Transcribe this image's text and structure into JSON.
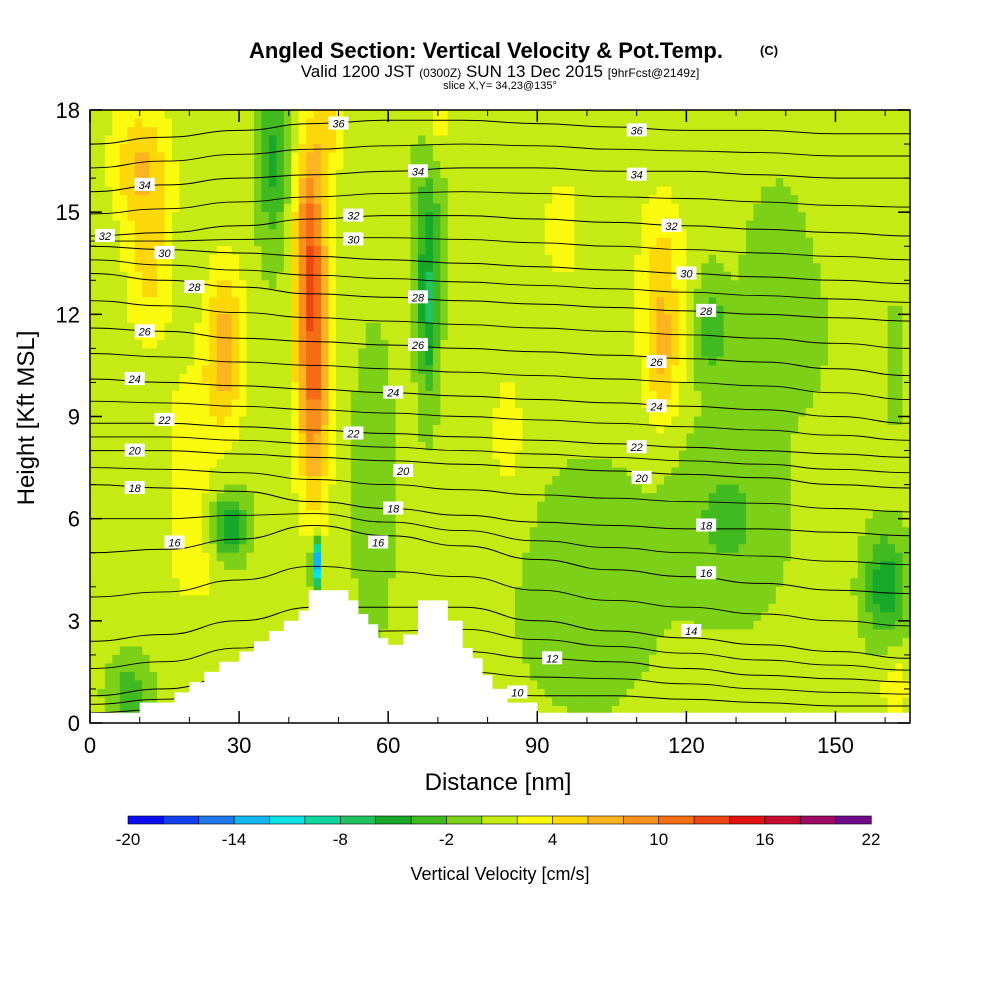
{
  "chart_data": {
    "type": "heatmap",
    "title": "Angled Section: Vertical Velocity & Pot.Temp.",
    "title_units": "(C)",
    "subtitle_parts": [
      "Valid 1200 JST",
      "(0300Z)",
      "SUN 13 Dec 2015",
      "[9hrFcst@2149z]"
    ],
    "slice_label": "slice X,Y= 34,23@135°",
    "xlabel": "Distance [nm]",
    "ylabel": "Height [Kft MSL]",
    "xlim": [
      0,
      165
    ],
    "ylim": [
      0,
      18
    ],
    "x_ticks": [
      "0",
      "30",
      "60",
      "90",
      "120",
      "150"
    ],
    "x_tick_values": [
      0,
      30,
      60,
      90,
      120,
      150
    ],
    "y_ticks": [
      "0",
      "3",
      "6",
      "9",
      "12",
      "15",
      "18"
    ],
    "y_tick_values": [
      0,
      3,
      6,
      9,
      12,
      15,
      18
    ],
    "colorbar": {
      "label": "Vertical Velocity [cm/s]",
      "tick_labels": [
        "-20",
        "-14",
        "-8",
        "-2",
        "4",
        "10",
        "16",
        "22"
      ],
      "tick_values": [
        -20,
        -14,
        -8,
        -2,
        4,
        10,
        16,
        22
      ],
      "min": -20,
      "step": 2,
      "colors": [
        "#0a0ff2",
        "#1040f0",
        "#1f78ea",
        "#12b6ee",
        "#0ce2e6",
        "#10d6a0",
        "#22c260",
        "#18a82a",
        "#40ba20",
        "#7cd018",
        "#c6ea14",
        "#fafa0e",
        "#fcd80a",
        "#fcb420",
        "#f9901c",
        "#f46c14",
        "#ee4612",
        "#e21412",
        "#c80a30",
        "#9e0a64",
        "#6e0a86"
      ]
    },
    "terrain_profile": [
      [
        0,
        0.3
      ],
      [
        10,
        0.3
      ],
      [
        10,
        0.6
      ],
      [
        17,
        0.6
      ],
      [
        17,
        0.9
      ],
      [
        20,
        0.9
      ],
      [
        20,
        1.2
      ],
      [
        23,
        1.2
      ],
      [
        23,
        1.5
      ],
      [
        26,
        1.5
      ],
      [
        26,
        1.8
      ],
      [
        30,
        1.8
      ],
      [
        30,
        2.1
      ],
      [
        33,
        2.1
      ],
      [
        33,
        2.4
      ],
      [
        36,
        2.4
      ],
      [
        36,
        2.7
      ],
      [
        39,
        2.7
      ],
      [
        39,
        3.0
      ],
      [
        42,
        3.0
      ],
      [
        42,
        3.3
      ],
      [
        44,
        3.3
      ],
      [
        44,
        3.9
      ],
      [
        52,
        3.9
      ],
      [
        52,
        3.6
      ],
      [
        54,
        3.6
      ],
      [
        54,
        3.2
      ],
      [
        56,
        3.2
      ],
      [
        56,
        2.9
      ],
      [
        58,
        2.9
      ],
      [
        58,
        2.5
      ],
      [
        60,
        2.5
      ],
      [
        60,
        2.3
      ],
      [
        63,
        2.3
      ],
      [
        63,
        2.6
      ],
      [
        66,
        2.6
      ],
      [
        66,
        3.6
      ],
      [
        72,
        3.6
      ],
      [
        72,
        3.0
      ],
      [
        75,
        3.0
      ],
      [
        75,
        2.2
      ],
      [
        77,
        2.2
      ],
      [
        77,
        1.9
      ],
      [
        79,
        1.9
      ],
      [
        79,
        1.4
      ],
      [
        81,
        1.4
      ],
      [
        81,
        1.0
      ],
      [
        84,
        1.0
      ],
      [
        84,
        0.6
      ],
      [
        90,
        0.6
      ],
      [
        90,
        0.3
      ],
      [
        165,
        0.3
      ]
    ],
    "velocity_features": [
      {
        "x": 45.0,
        "y": 10.5,
        "sx": 3.5,
        "sy": 4.2,
        "amp": 10
      },
      {
        "x": 44.0,
        "y": 14.5,
        "sx": 3.0,
        "sy": 3.0,
        "amp": 7
      },
      {
        "x": 48.0,
        "y": 17.5,
        "sx": 3.0,
        "sy": 1.5,
        "amp": 4
      },
      {
        "x": 27.0,
        "y": 11.0,
        "sx": 4.0,
        "sy": 2.4,
        "amp": 7
      },
      {
        "x": 10.0,
        "y": 16.5,
        "sx": 6.0,
        "sy": 1.8,
        "amp": 5
      },
      {
        "x": 12.0,
        "y": 13.5,
        "sx": 5.0,
        "sy": 2.5,
        "amp": 4
      },
      {
        "x": 20.0,
        "y": 8.0,
        "sx": 5.0,
        "sy": 2.5,
        "amp": 3
      },
      {
        "x": 115.0,
        "y": 11.0,
        "sx": 4.0,
        "sy": 2.2,
        "amp": 6
      },
      {
        "x": 115.0,
        "y": 14.0,
        "sx": 5.0,
        "sy": 2.0,
        "amp": 3
      },
      {
        "x": 70.0,
        "y": 18.0,
        "sx": 3.0,
        "sy": 1.5,
        "amp": 3
      },
      {
        "x": 95.0,
        "y": 14.5,
        "sx": 6.0,
        "sy": 2.5,
        "amp": 2
      },
      {
        "x": 84.0,
        "y": 8.5,
        "sx": 5.0,
        "sy": 3.0,
        "amp": 2
      },
      {
        "x": 150.0,
        "y": 15.5,
        "sx": 6.0,
        "sy": 2.5,
        "amp": 1.5
      },
      {
        "x": 22.0,
        "y": 4.5,
        "sx": 8.0,
        "sy": 1.3,
        "amp": 2
      },
      {
        "x": 162.0,
        "y": 1.0,
        "sx": 3.0,
        "sy": 1.0,
        "amp": 3
      },
      {
        "x": 45.5,
        "y": 4.7,
        "sx": 1.0,
        "sy": 0.7,
        "amp": -16
      },
      {
        "x": 28.0,
        "y": 5.7,
        "sx": 3.5,
        "sy": 1.0,
        "amp": -7
      },
      {
        "x": 68.0,
        "y": 12.0,
        "sx": 2.0,
        "sy": 2.5,
        "amp": -6
      },
      {
        "x": 68.0,
        "y": 15.0,
        "sx": 3.0,
        "sy": 2.5,
        "amp": -3
      },
      {
        "x": 37.0,
        "y": 16.5,
        "sx": 3.0,
        "sy": 2.5,
        "amp": -5
      },
      {
        "x": 160.0,
        "y": 4.0,
        "sx": 4.0,
        "sy": 1.5,
        "amp": -6
      },
      {
        "x": 125.0,
        "y": 11.5,
        "sx": 3.0,
        "sy": 1.5,
        "amp": -4
      },
      {
        "x": 128.0,
        "y": 6.0,
        "sx": 10.0,
        "sy": 2.5,
        "amp": -3
      },
      {
        "x": 8.0,
        "y": 0.8,
        "sx": 4.0,
        "sy": 1.0,
        "amp": -4
      },
      {
        "x": 57.0,
        "y": 7.0,
        "sx": 4.0,
        "sy": 4.0,
        "amp": -2
      },
      {
        "x": 100.0,
        "y": 4.0,
        "sx": 12.0,
        "sy": 3.0,
        "amp": -2.5
      },
      {
        "x": 140.0,
        "y": 12.5,
        "sx": 8.0,
        "sy": 3.0,
        "amp": -2
      },
      {
        "x": 162.0,
        "y": 10.5,
        "sx": 1.5,
        "sy": 1.5,
        "amp": -3
      }
    ],
    "velocity_base": 0.5,
    "isentropes": [
      {
        "value": 10,
        "y": [
          0.3,
          0.4,
          0.6,
          0.8,
          0.9,
          0.9,
          0.8,
          0.8,
          0.7,
          0.6,
          0.5,
          0.5
        ]
      },
      {
        "value": 12,
        "y": [
          0.8,
          1.0,
          1.4,
          1.9,
          2.0,
          2.1,
          1.9,
          1.8,
          1.6,
          1.4,
          1.3,
          1.2
        ]
      },
      {
        "value": 14,
        "y": [
          2.4,
          2.6,
          3.0,
          3.4,
          3.4,
          3.4,
          3.0,
          2.7,
          2.5,
          2.3,
          2.1,
          1.9
        ]
      },
      {
        "value": 16,
        "y": [
          5.0,
          5.1,
          5.4,
          5.8,
          5.5,
          5.2,
          4.8,
          4.5,
          4.3,
          4.1,
          3.9,
          3.8
        ]
      },
      {
        "value": 18,
        "y": [
          7.0,
          6.9,
          6.8,
          6.5,
          6.3,
          6.1,
          5.9,
          5.8,
          5.7,
          5.7,
          5.6,
          5.5
        ]
      },
      {
        "value": 20,
        "y": [
          8.0,
          8.0,
          7.9,
          7.8,
          7.7,
          7.6,
          7.5,
          7.4,
          7.3,
          7.2,
          7.0,
          6.9
        ]
      },
      {
        "value": 22,
        "y": [
          8.8,
          8.8,
          8.7,
          8.6,
          8.5,
          8.4,
          8.3,
          8.2,
          8.1,
          8.0,
          7.9,
          7.8
        ]
      },
      {
        "value": 24,
        "y": [
          10.1,
          10.0,
          9.9,
          9.8,
          9.7,
          9.6,
          9.5,
          9.4,
          9.3,
          9.2,
          9.0,
          8.8
        ]
      },
      {
        "value": 26,
        "y": [
          11.6,
          11.5,
          11.3,
          11.2,
          11.1,
          11.0,
          10.9,
          10.8,
          10.7,
          10.6,
          10.4,
          10.2
        ]
      },
      {
        "value": 28,
        "y": [
          13.2,
          13.0,
          12.8,
          12.6,
          12.5,
          12.4,
          12.3,
          12.2,
          12.1,
          12.0,
          11.9,
          11.8
        ]
      },
      {
        "value": 30,
        "y": [
          14.0,
          13.9,
          13.8,
          13.7,
          13.6,
          13.5,
          13.4,
          13.3,
          13.2,
          13.1,
          13.0,
          12.9
        ]
      },
      {
        "value": 32,
        "y": [
          14.3,
          14.4,
          14.6,
          14.8,
          14.9,
          14.9,
          14.8,
          14.7,
          14.6,
          14.5,
          14.4,
          14.3
        ]
      },
      {
        "value": 34,
        "y": [
          15.6,
          15.8,
          16.0,
          16.1,
          16.2,
          16.3,
          16.3,
          16.2,
          16.2,
          16.1,
          16.0,
          16.0
        ]
      },
      {
        "value": 36,
        "y": [
          17.0,
          17.2,
          17.4,
          17.6,
          17.7,
          17.7,
          17.6,
          17.5,
          17.4,
          17.4,
          17.3,
          17.3
        ]
      }
    ],
    "isentrope_x": [
      0,
      15,
      30,
      45,
      60,
      75,
      90,
      105,
      120,
      135,
      150,
      165
    ],
    "contour_labels": [
      {
        "text": "36",
        "x": 50,
        "y": 17.6
      },
      {
        "text": "36",
        "x": 110,
        "y": 17.4
      },
      {
        "text": "34",
        "x": 11,
        "y": 15.8
      },
      {
        "text": "34",
        "x": 66,
        "y": 16.2
      },
      {
        "text": "34",
        "x": 110,
        "y": 16.1
      },
      {
        "text": "32",
        "x": 3,
        "y": 14.3
      },
      {
        "text": "32",
        "x": 53,
        "y": 14.9
      },
      {
        "text": "32",
        "x": 117,
        "y": 14.6
      },
      {
        "text": "30",
        "x": 15,
        "y": 13.8
      },
      {
        "text": "30",
        "x": 53,
        "y": 14.2
      },
      {
        "text": "30",
        "x": 120,
        "y": 13.2
      },
      {
        "text": "28",
        "x": 21,
        "y": 12.8
      },
      {
        "text": "28",
        "x": 66,
        "y": 12.5
      },
      {
        "text": "28",
        "x": 124,
        "y": 12.1
      },
      {
        "text": "26",
        "x": 11,
        "y": 11.5
      },
      {
        "text": "26",
        "x": 66,
        "y": 11.1
      },
      {
        "text": "26",
        "x": 114,
        "y": 10.6
      },
      {
        "text": "24",
        "x": 9,
        "y": 10.1
      },
      {
        "text": "24",
        "x": 61,
        "y": 9.7
      },
      {
        "text": "24",
        "x": 114,
        "y": 9.3
      },
      {
        "text": "22",
        "x": 15,
        "y": 8.9
      },
      {
        "text": "22",
        "x": 53,
        "y": 8.5
      },
      {
        "text": "22",
        "x": 110,
        "y": 8.1
      },
      {
        "text": "20",
        "x": 9,
        "y": 8.0
      },
      {
        "text": "20",
        "x": 63,
        "y": 7.4
      },
      {
        "text": "20",
        "x": 111,
        "y": 7.2
      },
      {
        "text": "18",
        "x": 9,
        "y": 6.9
      },
      {
        "text": "18",
        "x": 61,
        "y": 6.3
      },
      {
        "text": "18",
        "x": 124,
        "y": 5.8
      },
      {
        "text": "16",
        "x": 17,
        "y": 5.3
      },
      {
        "text": "16",
        "x": 58,
        "y": 5.3
      },
      {
        "text": "16",
        "x": 124,
        "y": 4.4
      },
      {
        "text": "14",
        "x": 121,
        "y": 2.7
      },
      {
        "text": "12",
        "x": 93,
        "y": 1.9
      },
      {
        "text": "10",
        "x": 86,
        "y": 0.9
      }
    ]
  }
}
